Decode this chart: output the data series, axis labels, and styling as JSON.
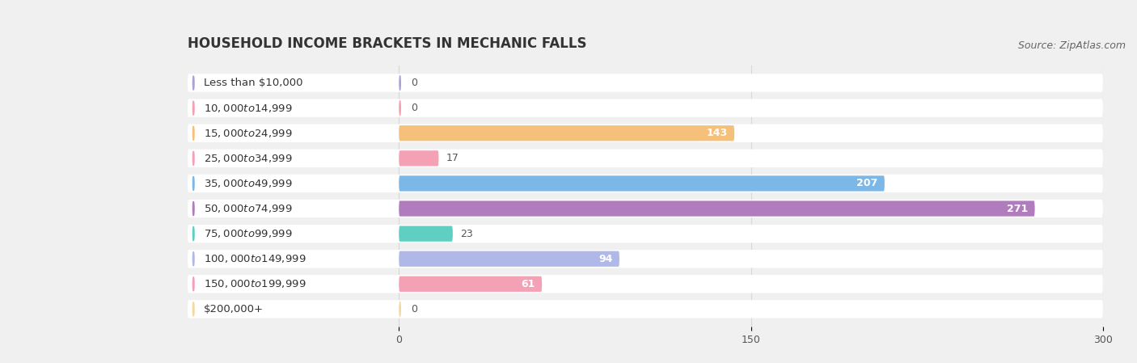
{
  "title": "HOUSEHOLD INCOME BRACKETS IN MECHANIC FALLS",
  "source": "Source: ZipAtlas.com",
  "categories": [
    "Less than $10,000",
    "$10,000 to $14,999",
    "$15,000 to $24,999",
    "$25,000 to $34,999",
    "$35,000 to $49,999",
    "$50,000 to $74,999",
    "$75,000 to $99,999",
    "$100,000 to $149,999",
    "$150,000 to $199,999",
    "$200,000+"
  ],
  "values": [
    0,
    0,
    143,
    17,
    207,
    271,
    23,
    94,
    61,
    0
  ],
  "bar_colors": [
    "#a8a4d4",
    "#f4a0b5",
    "#f5c07a",
    "#f4a0b5",
    "#7bb8e8",
    "#b07cbe",
    "#5ecfc0",
    "#b0b8e8",
    "#f4a0b5",
    "#f5d8a0"
  ],
  "xlim_data": [
    0,
    300
  ],
  "xticks": [
    0,
    150,
    300
  ],
  "bg_color": "#f0f0f0",
  "row_bg_color": "#ffffff",
  "label_bg_color": "#ffffff",
  "grid_color": "#d8d8d8",
  "title_fontsize": 12,
  "label_fontsize": 9.5,
  "value_fontsize": 9,
  "source_fontsize": 9
}
